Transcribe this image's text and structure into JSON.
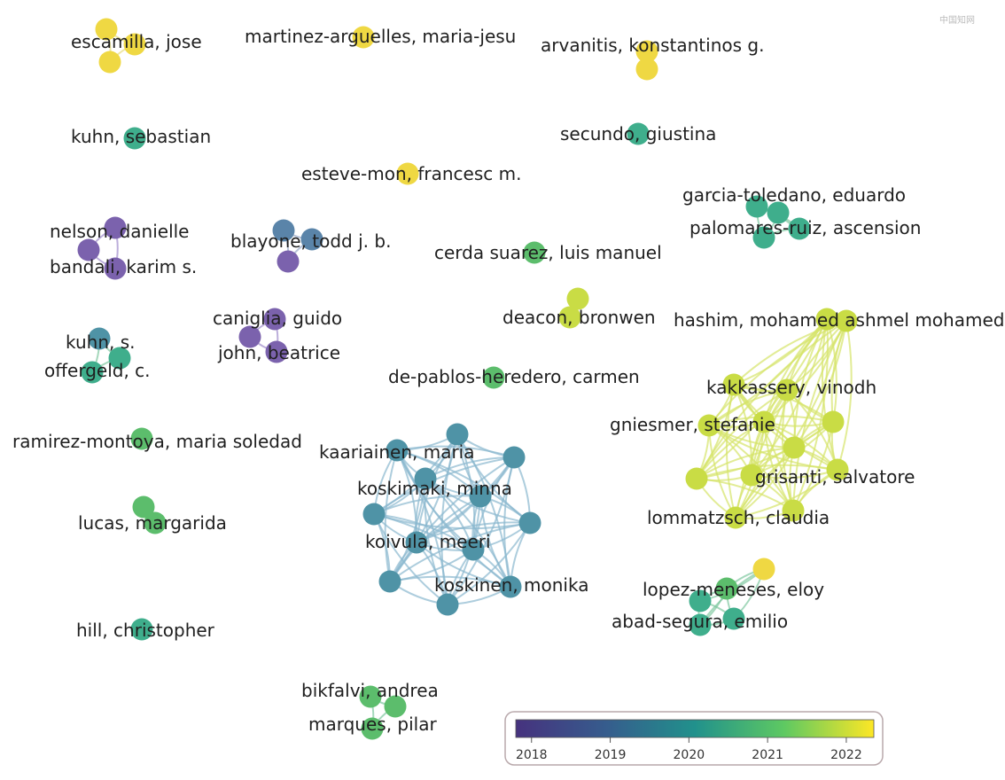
{
  "watermark": "中国知网",
  "colors": {
    "purple": "#7b62ad",
    "steel": "#5a84a9",
    "teal": "#4f93a6",
    "teal_green": "#3fae8c",
    "green": "#5cbd6c",
    "yellow_green": "#c9dc45",
    "yellow": "#efd843",
    "edge_blue": "#8ab8cf",
    "edge_yellow": "#d6e46a",
    "edge_green": "#7fc7a0",
    "edge_purple": "#a08ccc"
  },
  "authors": [
    {
      "label": "escamilla, jose",
      "year": 2022.3
    },
    {
      "label": "martinez-arguelles, maria-jesu",
      "year": 2022.3
    },
    {
      "label": "arvanitis, konstantinos g.",
      "year": 2022.3
    },
    {
      "label": "kuhn, sebastian",
      "year": 2020.2
    },
    {
      "label": "secundo, giustina",
      "year": 2020.2
    },
    {
      "label": "esteve-mon, francesc m.",
      "year": 2022.3
    },
    {
      "label": "garcia-toledano, eduardo",
      "year": 2019.9
    },
    {
      "label": "palomares-ruiz, ascension",
      "year": 2019.9
    },
    {
      "label": "nelson, danielle",
      "year": 2018.1
    },
    {
      "label": "bandali, karim s.",
      "year": 2018.1
    },
    {
      "label": "blayone, todd j. b.",
      "year": 2018.5
    },
    {
      "label": "cerda suarez, luis manuel",
      "year": 2020.6
    },
    {
      "label": "caniglia, guido",
      "year": 2018.1
    },
    {
      "label": "john, beatrice",
      "year": 2018.1
    },
    {
      "label": "deacon, bronwen",
      "year": 2021.4
    },
    {
      "label": "hashim, mohamed ashmel mohamed",
      "year": 2021.4
    },
    {
      "label": "kuhn, s.",
      "year": 2019.5
    },
    {
      "label": "offergeld, c.",
      "year": 2020.2
    },
    {
      "label": "de-pablos-heredero, carmen",
      "year": 2020.6
    },
    {
      "label": "kakkassery, vinodh",
      "year": 2021.4
    },
    {
      "label": "gniesmer, stefanie",
      "year": 2021.4
    },
    {
      "label": "ramirez-montoya, maria soledad",
      "year": 2020.6
    },
    {
      "label": "kaariainen, maria",
      "year": 2018.9
    },
    {
      "label": "grisanti, salvatore",
      "year": 2021.4
    },
    {
      "label": "koskimaki, minna",
      "year": 2018.9
    },
    {
      "label": "lucas, margarida",
      "year": 2020.6
    },
    {
      "label": "lommatzsch, claudia",
      "year": 2021.4
    },
    {
      "label": "koivula, meeri",
      "year": 2018.9
    },
    {
      "label": "koskinen, monika",
      "year": 2018.9
    },
    {
      "label": "lopez-meneses, eloy",
      "year": 2020.6
    },
    {
      "label": "abad-segura, emilio",
      "year": 2019.9
    },
    {
      "label": "hill, christopher",
      "year": 2020.2
    },
    {
      "label": "bikfalvi, andrea",
      "year": 2020.6
    },
    {
      "label": "marques, pilar",
      "year": 2020.6
    }
  ],
  "legend": {
    "ticks": [
      "2018",
      "2019",
      "2020",
      "2021",
      "2022"
    ],
    "range": [
      2017.8,
      2022.35
    ]
  }
}
